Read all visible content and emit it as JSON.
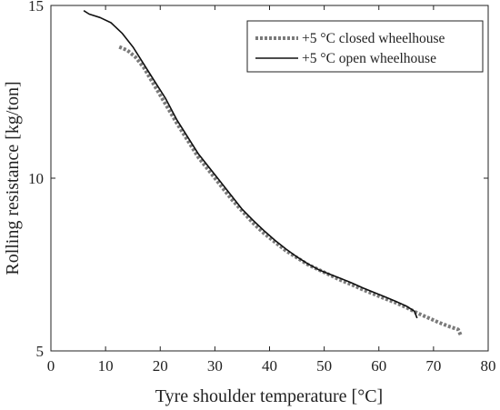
{
  "chart_data": {
    "type": "line",
    "title": "",
    "xlabel": "Tyre shoulder temperature [°C]",
    "ylabel": "Rolling resistance [kg/ton]",
    "xlim": [
      0,
      80
    ],
    "ylim": [
      5,
      15
    ],
    "xticks": [
      0,
      10,
      20,
      30,
      40,
      50,
      60,
      70,
      80
    ],
    "yticks": [
      5,
      10,
      15
    ],
    "grid": false,
    "legend_position": "top-right",
    "series": [
      {
        "name": "+5 °C closed wheelhouse",
        "style": "dotted",
        "color": "#7a7a7a",
        "x": [
          12.5,
          14,
          15.5,
          17,
          18.5,
          20,
          21.5,
          23,
          25,
          27,
          29,
          31,
          33,
          35,
          37,
          39,
          41,
          43,
          45,
          47,
          49,
          51,
          53,
          55,
          57,
          59,
          61,
          63,
          65,
          67,
          69,
          71,
          73,
          74.5,
          75
        ],
        "y": [
          13.8,
          13.7,
          13.5,
          13.2,
          12.8,
          12.4,
          12.0,
          11.6,
          11.1,
          10.6,
          10.2,
          9.8,
          9.4,
          9.05,
          8.7,
          8.4,
          8.15,
          7.9,
          7.7,
          7.5,
          7.35,
          7.2,
          7.05,
          6.92,
          6.78,
          6.65,
          6.52,
          6.4,
          6.26,
          6.1,
          5.96,
          5.82,
          5.7,
          5.62,
          5.45
        ]
      },
      {
        "name": "+5 °C open wheelhouse",
        "style": "solid",
        "color": "#111111",
        "x": [
          6,
          7,
          9,
          11,
          13,
          15,
          17,
          19,
          21,
          23,
          25,
          27,
          29,
          31,
          33,
          35,
          37,
          39,
          41,
          43,
          45,
          47,
          49,
          51,
          53,
          55,
          57,
          59,
          61,
          63,
          65,
          66.5,
          67
        ],
        "y": [
          14.85,
          14.75,
          14.65,
          14.5,
          14.2,
          13.8,
          13.3,
          12.8,
          12.3,
          11.7,
          11.2,
          10.7,
          10.3,
          9.9,
          9.5,
          9.1,
          8.78,
          8.48,
          8.2,
          7.95,
          7.72,
          7.52,
          7.35,
          7.22,
          7.1,
          6.97,
          6.83,
          6.7,
          6.57,
          6.44,
          6.3,
          6.15,
          5.95
        ]
      }
    ]
  }
}
